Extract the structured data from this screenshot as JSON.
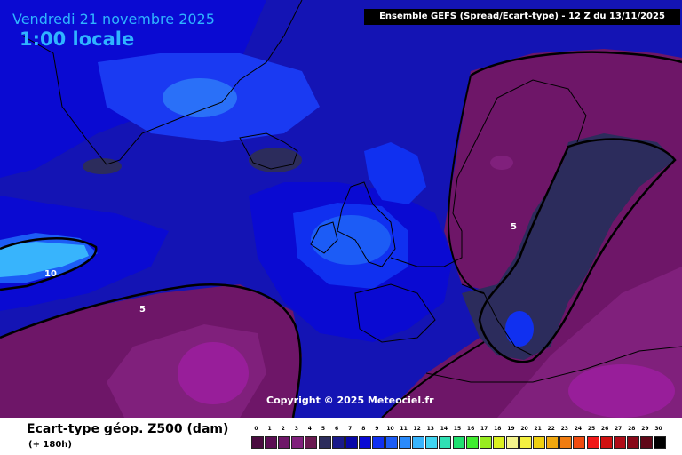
{
  "header": {
    "date": "Vendredi 21 novembre 2025",
    "local_time": "1:00 locale",
    "model_info": "Ensemble GEFS  (Spread/Ecart-type) - 12 Z du 13/11/2025"
  },
  "copyright": "Copyright © 2025 Meteociel.fr",
  "contour_labels": [
    "10",
    "5",
    "5"
  ],
  "footer": {
    "title": "Ecart-type géop. Z500 (dam)",
    "lead_time": "(+ 180h)"
  },
  "scale": {
    "ticks": [
      "0",
      "1",
      "2",
      "3",
      "4",
      "5",
      "6",
      "7",
      "8",
      "9",
      "10",
      "11",
      "12",
      "13",
      "14",
      "15",
      "16",
      "17",
      "18",
      "19",
      "20",
      "21",
      "22",
      "23",
      "24",
      "25",
      "26",
      "27",
      "28",
      "29",
      "30"
    ],
    "colors": [
      "#4a0c40",
      "#5c0e54",
      "#6e1668",
      "#80207c",
      "#6a1a50",
      "#2c2c5c",
      "#1a1a8a",
      "#0808a8",
      "#0a0ad4",
      "#1030f0",
      "#1c5cf6",
      "#2a8afa",
      "#38b4fc",
      "#40d4f0",
      "#30e0b4",
      "#20e070",
      "#40ec30",
      "#98ec20",
      "#dcf020",
      "#f4f48c",
      "#f4f040",
      "#f0d010",
      "#f0a810",
      "#f07c10",
      "#f04c10",
      "#f01818",
      "#d01010",
      "#b00c18",
      "#880818",
      "#600818",
      "#000000"
    ]
  }
}
